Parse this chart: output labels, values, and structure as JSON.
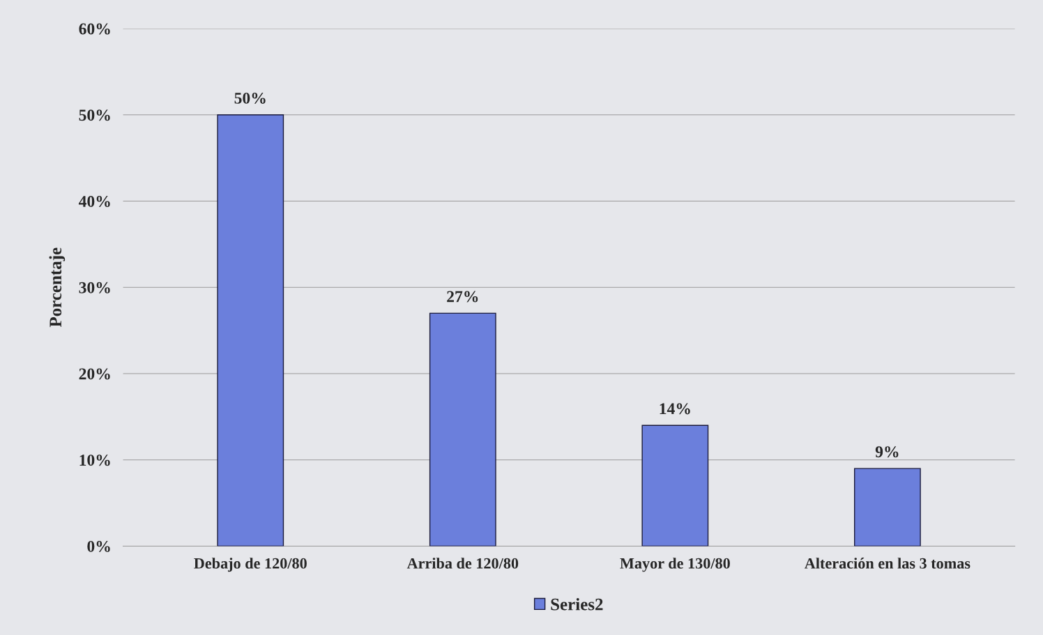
{
  "chart_data": {
    "type": "bar",
    "ylabel": "Porcentaje",
    "categories": [
      "Debajo de 120/80",
      "Arriba de 120/80",
      "Mayor de 130/80",
      "Alteración en las 3 tomas"
    ],
    "series": [
      {
        "name": "Series2",
        "color": "#6b7fdc",
        "values": [
          50,
          27,
          14,
          9
        ]
      }
    ],
    "value_labels": [
      "50%",
      "27%",
      "14%",
      "9%"
    ],
    "ylim": [
      0,
      60
    ],
    "yticks": [
      {
        "value": 0,
        "label": "0%"
      },
      {
        "value": 10,
        "label": "10%"
      },
      {
        "value": 20,
        "label": "20%"
      },
      {
        "value": 30,
        "label": "30%"
      },
      {
        "value": 40,
        "label": "40%"
      },
      {
        "value": 50,
        "label": "50%"
      },
      {
        "value": 60,
        "label": "60%"
      }
    ],
    "grid": "y",
    "legend": "bottom"
  }
}
